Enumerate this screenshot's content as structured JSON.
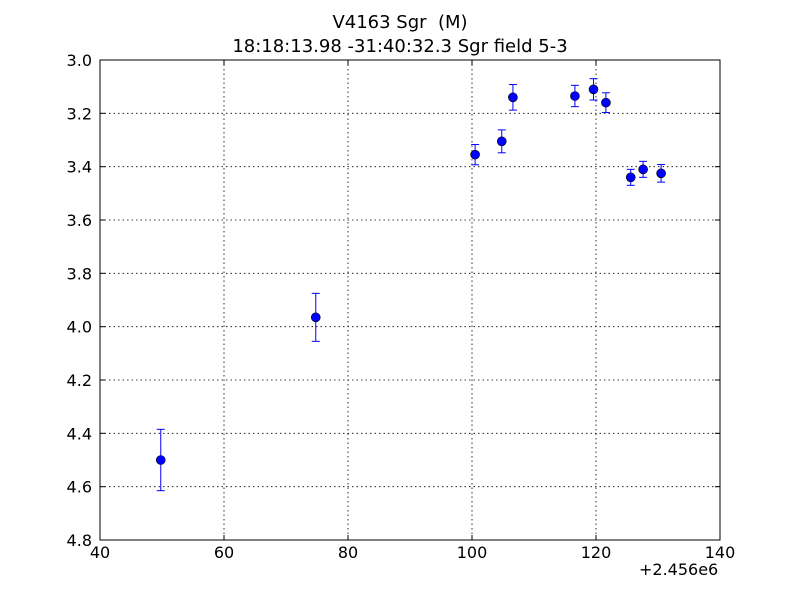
{
  "chart_data": {
    "type": "scatter",
    "title": "V4163 Sgr  (M)",
    "subtitle": "18:18:13.98 -31:40:32.3 Sgr field 5-3",
    "x_offset_label": "+2.456e6",
    "xlim": [
      40,
      140
    ],
    "ylim": [
      3.0,
      4.8
    ],
    "y_inverted": true,
    "x_ticks": [
      40,
      60,
      80,
      100,
      120,
      140
    ],
    "x_tick_labels": [
      "40",
      "60",
      "80",
      "100",
      "120",
      "140"
    ],
    "y_ticks": [
      3.0,
      3.2,
      3.4,
      3.6,
      3.8,
      4.0,
      4.2,
      4.4,
      4.6,
      4.8
    ],
    "y_tick_labels": [
      "3.0",
      "3.2",
      "3.4",
      "3.6",
      "3.8",
      "4.0",
      "4.2",
      "4.4",
      "4.6",
      "4.8"
    ],
    "grid": true,
    "marker_color": "#0000ff",
    "points": [
      {
        "x": 49.8,
        "y": 4.5,
        "err": 0.115
      },
      {
        "x": 74.8,
        "y": 3.965,
        "err": 0.09
      },
      {
        "x": 100.5,
        "y": 3.355,
        "err": 0.038
      },
      {
        "x": 104.8,
        "y": 3.305,
        "err": 0.043
      },
      {
        "x": 106.6,
        "y": 3.14,
        "err": 0.048
      },
      {
        "x": 116.6,
        "y": 3.135,
        "err": 0.04
      },
      {
        "x": 119.6,
        "y": 3.11,
        "err": 0.04
      },
      {
        "x": 121.6,
        "y": 3.16,
        "err": 0.037
      },
      {
        "x": 125.6,
        "y": 3.44,
        "err": 0.03
      },
      {
        "x": 127.6,
        "y": 3.41,
        "err": 0.03
      },
      {
        "x": 130.5,
        "y": 3.425,
        "err": 0.033
      }
    ]
  }
}
